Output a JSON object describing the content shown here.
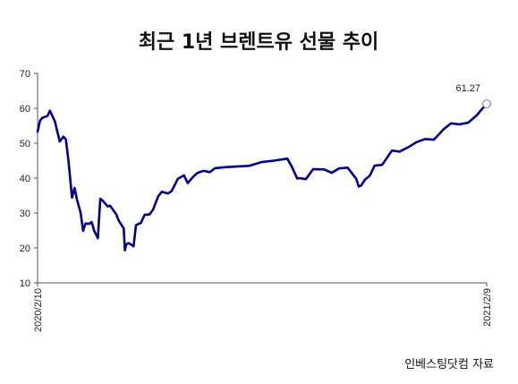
{
  "chart_data": {
    "type": "line",
    "title": "최근 1년 브렌트유 선물 추이",
    "ylim": [
      10,
      70
    ],
    "yticks": [
      "10",
      "20",
      "30",
      "40",
      "50",
      "60",
      "70"
    ],
    "xtick_labels": [
      "2020/2/10",
      "2021/2/9"
    ],
    "last_value_label": "61.27",
    "source": "인베스팅닷컴 자료",
    "series_color": "#00008B",
    "grid": false,
    "series": [
      {
        "x": [
          "2020-02-10",
          "2020-02-12",
          "2020-02-14",
          "2020-02-18",
          "2020-02-20",
          "2020-02-24",
          "2020-02-26",
          "2020-02-28",
          "2020-03-02",
          "2020-03-04",
          "2020-03-06",
          "2020-03-09",
          "2020-03-11",
          "2020-03-13",
          "2020-03-16",
          "2020-03-18",
          "2020-03-20",
          "2020-03-23",
          "2020-03-25",
          "2020-03-27",
          "2020-03-30",
          "2020-04-01",
          "2020-04-03",
          "2020-04-07",
          "2020-04-09",
          "2020-04-14",
          "2020-04-16",
          "2020-04-20",
          "2020-04-21",
          "2020-04-22",
          "2020-04-24",
          "2020-04-28",
          "2020-04-30",
          "2020-05-04",
          "2020-05-07",
          "2020-05-11",
          "2020-05-14",
          "2020-05-18",
          "2020-05-21",
          "2020-05-26",
          "2020-05-29",
          "2020-06-03",
          "2020-06-08",
          "2020-06-11",
          "2020-06-16",
          "2020-06-19",
          "2020-06-24",
          "2020-06-29",
          "2020-07-03",
          "2020-07-10",
          "2020-07-20",
          "2020-07-31",
          "2020-08-10",
          "2020-08-20",
          "2020-08-31",
          "2020-09-04",
          "2020-09-08",
          "2020-09-10",
          "2020-09-15",
          "2020-09-21",
          "2020-09-30",
          "2020-10-06",
          "2020-10-12",
          "2020-10-19",
          "2020-10-26",
          "2020-10-28",
          "2020-10-30",
          "2020-11-02",
          "2020-11-06",
          "2020-11-10",
          "2020-11-16",
          "2020-11-24",
          "2020-11-30",
          "2020-12-07",
          "2020-12-14",
          "2020-12-21",
          "2020-12-28",
          "2021-01-05",
          "2021-01-11",
          "2021-01-18",
          "2021-01-25",
          "2021-02-01",
          "2021-02-04",
          "2021-02-09"
        ],
        "values": [
          53.3,
          56.5,
          57.3,
          57.8,
          59.3,
          56.3,
          53.4,
          50.5,
          51.9,
          51.1,
          45.3,
          34.4,
          37.2,
          33.9,
          30.1,
          24.9,
          27.0,
          26.9,
          27.4,
          24.9,
          22.8,
          34.1,
          33.5,
          31.9,
          32.1,
          29.6,
          27.8,
          25.6,
          19.3,
          21.0,
          21.4,
          20.5,
          26.5,
          27.2,
          29.5,
          29.6,
          31.1,
          34.8,
          36.1,
          35.6,
          36.3,
          39.8,
          40.8,
          38.6,
          40.6,
          41.5,
          42.1,
          41.7,
          42.8,
          43.1,
          43.3,
          43.5,
          44.6,
          45.0,
          45.6,
          43.0,
          39.9,
          40.0,
          39.7,
          42.6,
          42.5,
          41.5,
          42.8,
          43.0,
          39.8,
          37.6,
          37.9,
          39.5,
          40.7,
          43.6,
          43.8,
          47.9,
          47.6,
          48.8,
          50.3,
          51.2,
          51.0,
          54.0,
          55.7,
          55.4,
          55.9,
          58.0,
          59.3,
          61.27
        ]
      }
    ]
  }
}
